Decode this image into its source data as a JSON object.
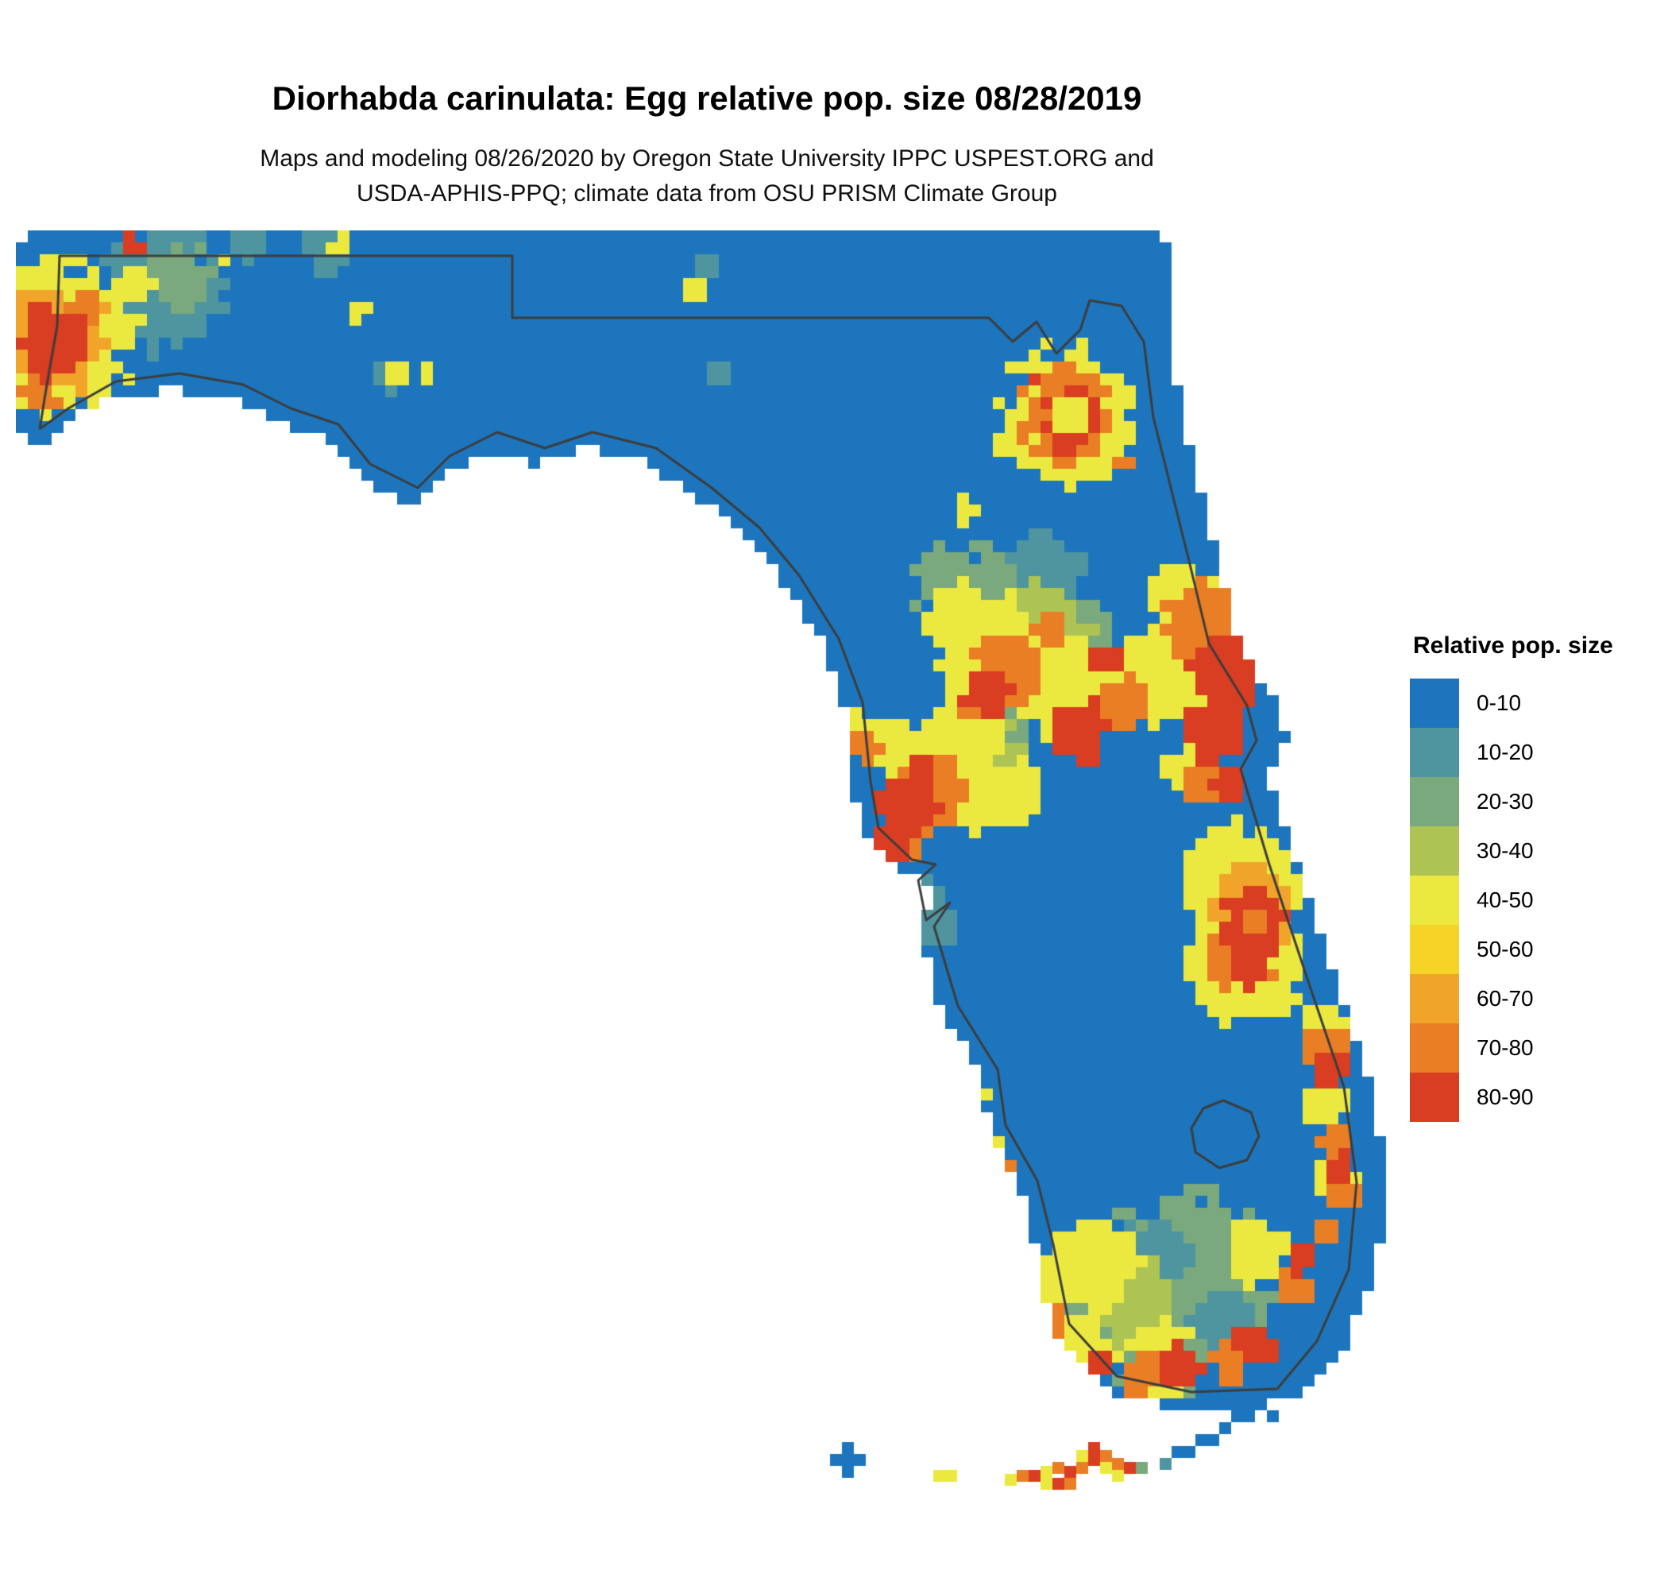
{
  "header": {
    "title": "Diorhabda carinulata: Egg relative pop. size 08/28/2019",
    "subtitle_line1": "Maps and modeling 08/26/2020 by Oregon State University IPPC USPEST.ORG and",
    "subtitle_line2": "USDA-APHIS-PPQ; climate data from OSU PRISM Climate Group"
  },
  "legend": {
    "title": "Relative pop. size",
    "items": [
      {
        "label": "0-10",
        "color": "#1d76bd"
      },
      {
        "label": "10-20",
        "color": "#4f95a0"
      },
      {
        "label": "20-30",
        "color": "#79a97c"
      },
      {
        "label": "30-40",
        "color": "#adc353"
      },
      {
        "label": "40-50",
        "color": "#ebe93f"
      },
      {
        "label": "50-60",
        "color": "#f5d327"
      },
      {
        "label": "60-70",
        "color": "#f0a52a"
      },
      {
        "label": "70-80",
        "color": "#e97e25"
      },
      {
        "label": "80-90",
        "color": "#d93d22"
      }
    ]
  },
  "map": {
    "region_name": "Florida",
    "cell_size": 15,
    "base_color_index": 0,
    "boundary_color": "#3d3d3d",
    "palette": [
      "#1d76bd",
      "#4f95a0",
      "#79a97c",
      "#adc353",
      "#ebe93f",
      "#f5d327",
      "#f0a52a",
      "#e97e25",
      "#d93d22"
    ],
    "outline": [
      [
        8,
        8
      ],
      [
        1440,
        8
      ],
      [
        1440,
        150
      ],
      [
        1455,
        240
      ],
      [
        1500,
        420
      ],
      [
        1525,
        520
      ],
      [
        1575,
        600
      ],
      [
        1585,
        640
      ],
      [
        1560,
        680
      ],
      [
        1600,
        800
      ],
      [
        1650,
        950
      ],
      [
        1695,
        1080
      ],
      [
        1710,
        1200
      ],
      [
        1700,
        1310
      ],
      [
        1660,
        1400
      ],
      [
        1610,
        1460
      ],
      [
        1480,
        1470
      ],
      [
        1380,
        1450
      ],
      [
        1320,
        1380
      ],
      [
        1300,
        1280
      ],
      [
        1280,
        1200
      ],
      [
        1240,
        1130
      ],
      [
        1230,
        1060
      ],
      [
        1180,
        980
      ],
      [
        1150,
        880
      ],
      [
        1170,
        830
      ],
      [
        1130,
        800
      ],
      [
        1080,
        760
      ],
      [
        1070,
        700
      ],
      [
        1060,
        600
      ],
      [
        1030,
        520
      ],
      [
        980,
        440
      ],
      [
        930,
        380
      ],
      [
        870,
        330
      ],
      [
        800,
        280
      ],
      [
        720,
        260
      ],
      [
        660,
        280
      ],
      [
        600,
        260
      ],
      [
        540,
        290
      ],
      [
        500,
        330
      ],
      [
        440,
        300
      ],
      [
        400,
        250
      ],
      [
        340,
        230
      ],
      [
        280,
        200
      ],
      [
        200,
        185
      ],
      [
        120,
        195
      ],
      [
        60,
        230
      ],
      [
        30,
        260
      ],
      [
        8,
        250
      ]
    ],
    "borders": [
      [
        [
          30,
          250
        ],
        [
          38,
          200
        ],
        [
          52,
          120
        ],
        [
          55,
          32
        ],
        [
          625,
          32
        ],
        [
          625,
          110
        ],
        [
          1225,
          110
        ],
        [
          1255,
          140
        ],
        [
          1285,
          115
        ],
        [
          1310,
          155
        ],
        [
          1340,
          125
        ],
        [
          1352,
          88
        ],
        [
          1392,
          95
        ],
        [
          1420,
          140
        ],
        [
          1432,
          235
        ],
        [
          1478,
          420
        ],
        [
          1502,
          520
        ],
        [
          1550,
          598
        ],
        [
          1562,
          642
        ],
        [
          1542,
          678
        ],
        [
          1578,
          798
        ],
        [
          1628,
          948
        ],
        [
          1672,
          1078
        ],
        [
          1688,
          1198
        ],
        [
          1678,
          1308
        ],
        [
          1638,
          1398
        ],
        [
          1588,
          1458
        ],
        [
          1480,
          1462
        ],
        [
          1386,
          1442
        ],
        [
          1326,
          1376
        ],
        [
          1306,
          1276
        ],
        [
          1286,
          1196
        ],
        [
          1246,
          1126
        ],
        [
          1236,
          1056
        ],
        [
          1186,
          976
        ],
        [
          1156,
          876
        ],
        [
          1176,
          846
        ],
        [
          1146,
          868
        ],
        [
          1136,
          818
        ],
        [
          1158,
          798
        ],
        [
          1128,
          792
        ],
        [
          1086,
          752
        ],
        [
          1076,
          694
        ],
        [
          1066,
          594
        ],
        [
          1036,
          514
        ],
        [
          986,
          434
        ],
        [
          936,
          374
        ],
        [
          876,
          324
        ],
        [
          806,
          274
        ],
        [
          726,
          254
        ],
        [
          666,
          274
        ],
        [
          606,
          254
        ],
        [
          546,
          284
        ],
        [
          506,
          324
        ],
        [
          446,
          294
        ],
        [
          406,
          244
        ],
        [
          346,
          224
        ],
        [
          286,
          194
        ],
        [
          206,
          180
        ],
        [
          126,
          190
        ],
        [
          66,
          224
        ],
        [
          30,
          250
        ]
      ],
      [
        [
          1520,
          1095
        ],
        [
          1555,
          1110
        ],
        [
          1565,
          1140
        ],
        [
          1550,
          1170
        ],
        [
          1515,
          1180
        ],
        [
          1485,
          1160
        ],
        [
          1480,
          1130
        ],
        [
          1495,
          1105
        ],
        [
          1520,
          1095
        ]
      ]
    ],
    "blobs": [
      [
        185,
        75,
        75,
        1
      ],
      [
        205,
        55,
        40,
        2
      ],
      [
        290,
        15,
        22,
        1
      ],
      [
        390,
        25,
        26,
        1
      ],
      [
        875,
        40,
        18,
        1
      ],
      [
        885,
        180,
        14,
        1
      ],
      [
        470,
        185,
        18,
        1
      ],
      [
        1240,
        490,
        95,
        2
      ],
      [
        1180,
        440,
        45,
        2
      ],
      [
        1300,
        430,
        50,
        1
      ],
      [
        1330,
        520,
        60,
        2
      ],
      [
        1240,
        640,
        45,
        2
      ],
      [
        1140,
        660,
        35,
        2
      ],
      [
        1130,
        850,
        40,
        1
      ],
      [
        1090,
        870,
        25,
        2
      ],
      [
        1160,
        880,
        22,
        1
      ],
      [
        1120,
        940,
        16,
        1
      ],
      [
        1055,
        930,
        14,
        2
      ],
      [
        1470,
        1330,
        115,
        2
      ],
      [
        1390,
        1370,
        70,
        2
      ],
      [
        1430,
        1290,
        45,
        1
      ],
      [
        1520,
        1370,
        40,
        1
      ],
      [
        1280,
        520,
        75,
        3
      ],
      [
        1210,
        660,
        55,
        3
      ],
      [
        1400,
        1340,
        55,
        3
      ],
      [
        55,
        130,
        95,
        4
      ],
      [
        150,
        70,
        25,
        4
      ],
      [
        115,
        105,
        16,
        4
      ],
      [
        262,
        40,
        14,
        4
      ],
      [
        408,
        18,
        14,
        4
      ],
      [
        430,
        105,
        14,
        4
      ],
      [
        852,
        72,
        14,
        4
      ],
      [
        480,
        180,
        12,
        4
      ],
      [
        515,
        185,
        14,
        4
      ],
      [
        1325,
        235,
        85,
        4
      ],
      [
        1200,
        352,
        16,
        4
      ],
      [
        1230,
        530,
        70,
        4
      ],
      [
        1320,
        580,
        70,
        4
      ],
      [
        1420,
        560,
        55,
        4
      ],
      [
        1180,
        480,
        35,
        4
      ],
      [
        1470,
        460,
        40,
        4
      ],
      [
        1480,
        560,
        60,
        4
      ],
      [
        1475,
        680,
        35,
        4
      ],
      [
        1200,
        620,
        40,
        4
      ],
      [
        1180,
        690,
        75,
        4
      ],
      [
        1250,
        710,
        45,
        4
      ],
      [
        1100,
        650,
        35,
        4
      ],
      [
        1055,
        625,
        28,
        4
      ],
      [
        1550,
        820,
        75,
        4
      ],
      [
        1545,
        920,
        75,
        4
      ],
      [
        1645,
        1000,
        30,
        4
      ],
      [
        1650,
        1100,
        32,
        4
      ],
      [
        1660,
        1190,
        28,
        4
      ],
      [
        1195,
        1080,
        25,
        4
      ],
      [
        1225,
        1160,
        22,
        4
      ],
      [
        1360,
        1300,
        55,
        4
      ],
      [
        1300,
        1330,
        40,
        4
      ],
      [
        1560,
        1290,
        40,
        4
      ],
      [
        1440,
        1420,
        45,
        4
      ],
      [
        1340,
        1400,
        35,
        4
      ],
      [
        50,
        135,
        68,
        6
      ],
      [
        1555,
        855,
        55,
        6
      ],
      [
        85,
        95,
        22,
        7
      ],
      [
        30,
        200,
        25,
        7
      ],
      [
        1325,
        235,
        58,
        7
      ],
      [
        1250,
        560,
        45,
        7
      ],
      [
        1395,
        600,
        35,
        7
      ],
      [
        1300,
        500,
        25,
        7
      ],
      [
        1505,
        500,
        55,
        7
      ],
      [
        1500,
        690,
        28,
        7
      ],
      [
        1150,
        710,
        48,
        7
      ],
      [
        1070,
        650,
        18,
        7
      ],
      [
        1120,
        760,
        30,
        7
      ],
      [
        1210,
        600,
        25,
        7
      ],
      [
        1545,
        915,
        45,
        7
      ],
      [
        1650,
        1030,
        26,
        7
      ],
      [
        1665,
        1150,
        24,
        7
      ],
      [
        1672,
        1215,
        20,
        7
      ],
      [
        1205,
        1120,
        20,
        7
      ],
      [
        1240,
        1190,
        18,
        7
      ],
      [
        1420,
        1435,
        30,
        7
      ],
      [
        1530,
        1420,
        28,
        7
      ],
      [
        1610,
        1330,
        25,
        7
      ],
      [
        1300,
        1370,
        22,
        7
      ],
      [
        1650,
        1260,
        20,
        7
      ],
      [
        1390,
        290,
        14,
        7
      ],
      [
        45,
        140,
        45,
        8
      ],
      [
        148,
        18,
        14,
        8
      ],
      [
        1330,
        238,
        40,
        8
      ],
      [
        1280,
        185,
        12,
        8
      ],
      [
        1225,
        585,
        30,
        8
      ],
      [
        1340,
        630,
        38,
        8
      ],
      [
        1370,
        540,
        22,
        8
      ],
      [
        1520,
        560,
        45,
        8
      ],
      [
        1510,
        630,
        40,
        8
      ],
      [
        1530,
        700,
        22,
        8
      ],
      [
        1120,
        725,
        38,
        8
      ],
      [
        1100,
        770,
        26,
        8
      ],
      [
        1140,
        680,
        22,
        8
      ],
      [
        1555,
        870,
        40,
        8
      ],
      [
        1550,
        930,
        30,
        8
      ],
      [
        1655,
        1060,
        24,
        8
      ],
      [
        1668,
        1180,
        18,
        8
      ],
      [
        1190,
        1055,
        18,
        8
      ],
      [
        1230,
        1175,
        14,
        8
      ],
      [
        1470,
        1430,
        28,
        8
      ],
      [
        1560,
        1400,
        25,
        8
      ],
      [
        1620,
        1290,
        22,
        8
      ],
      [
        1360,
        1430,
        20,
        8
      ],
      [
        1330,
        238,
        24,
        4
      ],
      [
        1560,
        870,
        15,
        7
      ]
    ],
    "extra_cells": [
      [
        1560,
        1470,
        0
      ],
      [
        1545,
        1470,
        0
      ],
      [
        1575,
        1485,
        0
      ],
      [
        1530,
        1485,
        0
      ],
      [
        1545,
        1485,
        0
      ],
      [
        1515,
        1500,
        0
      ],
      [
        1500,
        1515,
        0
      ],
      [
        1485,
        1515,
        0
      ],
      [
        1470,
        1530,
        0
      ],
      [
        1455,
        1530,
        0
      ],
      [
        1440,
        1545,
        1
      ],
      [
        1410,
        1550,
        2
      ],
      [
        1395,
        1550,
        8
      ],
      [
        1380,
        1545,
        7
      ],
      [
        1365,
        1550,
        4
      ],
      [
        1350,
        1540,
        8
      ],
      [
        1335,
        1550,
        7
      ],
      [
        1320,
        1555,
        8
      ],
      [
        1305,
        1550,
        7
      ],
      [
        1290,
        1555,
        4
      ],
      [
        1275,
        1560,
        8
      ],
      [
        1260,
        1560,
        7
      ],
      [
        1245,
        1565,
        4
      ],
      [
        1335,
        1535,
        4
      ],
      [
        1350,
        1525,
        8
      ],
      [
        1365,
        1535,
        7
      ],
      [
        1380,
        1560,
        4
      ],
      [
        1320,
        1570,
        7
      ],
      [
        1305,
        1570,
        8
      ],
      [
        1290,
        1570,
        4
      ],
      [
        1170,
        1560,
        4
      ],
      [
        1155,
        1560,
        4
      ],
      [
        1040,
        1540,
        0
      ],
      [
        1025,
        1540,
        0
      ],
      [
        1055,
        1540,
        0
      ],
      [
        1040,
        1525,
        0
      ],
      [
        1040,
        1555,
        0
      ]
    ]
  }
}
